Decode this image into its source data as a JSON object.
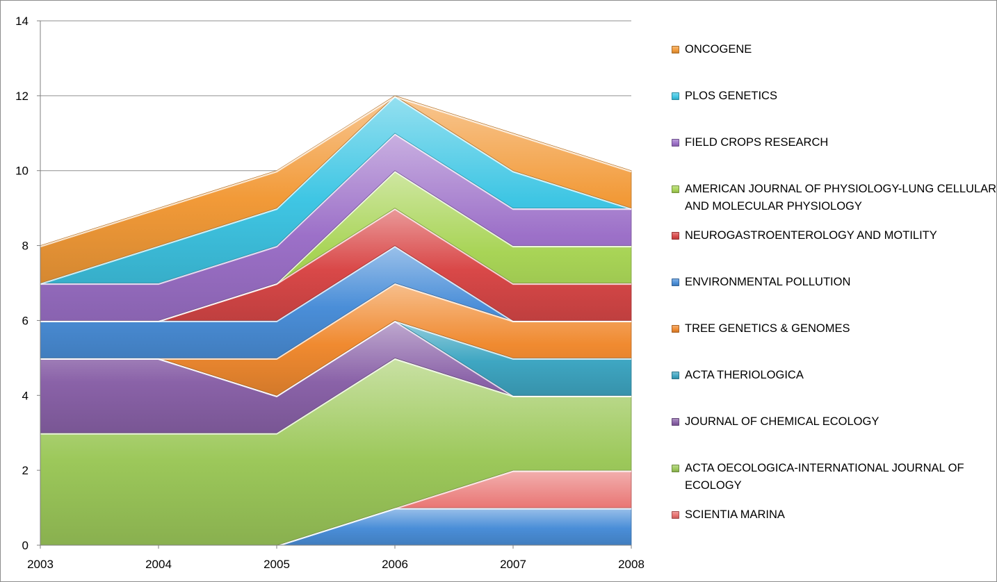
{
  "chart_data": {
    "type": "area",
    "stacked": true,
    "x": [
      "2003",
      "2004",
      "2005",
      "2006",
      "2007",
      "2008"
    ],
    "ylim": [
      0,
      14
    ],
    "yticks": [
      "0",
      "2",
      "4",
      "6",
      "8",
      "10",
      "12",
      "14"
    ],
    "grid": true,
    "legend_position": "right",
    "series": [
      {
        "name": "SCIENTIA MARINA",
        "values": [
          0,
          0,
          0,
          0,
          1,
          1
        ],
        "color": "#e8706e"
      },
      {
        "name": "ACTA OECOLOGICA-INTERNATIONAL JOURNAL OF ECOLOGY",
        "values": [
          3,
          3,
          3,
          4,
          2,
          2
        ],
        "color": "#9cc85a"
      },
      {
        "name": "JOURNAL OF CHEMICAL ECOLOGY",
        "values": [
          2,
          2,
          1,
          1,
          0,
          0
        ],
        "color": "#8a62a8"
      },
      {
        "name": "ACTA THERIOLOGICA",
        "values": [
          0,
          0,
          0,
          0,
          1,
          1
        ],
        "color": "#3ea6c2"
      },
      {
        "name": "TREE GENETICS & GENOMES",
        "values": [
          0,
          0,
          1,
          1,
          1,
          1
        ],
        "color": "#f08a30"
      },
      {
        "name": "ENVIRONMENTAL POLLUTION",
        "values": [
          1,
          1,
          1,
          1,
          0,
          0
        ],
        "color": "#4a8ed8"
      },
      {
        "name": "NEUROGASTROENTEROLOGY AND MOTILITY",
        "values": [
          0,
          0,
          1,
          1,
          1,
          1
        ],
        "color": "#d94848"
      },
      {
        "name": "AMERICAN JOURNAL OF PHYSIOLOGY-LUNG CELLULAR AND MOLECULAR PHYSIOLOGY",
        "values": [
          0,
          0,
          0,
          1,
          1,
          1
        ],
        "color": "#a8d456"
      },
      {
        "name": "FIELD CROPS RESEARCH",
        "values": [
          1,
          1,
          1,
          1,
          1,
          1
        ],
        "color": "#9c70c8"
      },
      {
        "name": "PLOS GENETICS",
        "values": [
          0,
          1,
          1,
          1,
          1,
          0
        ],
        "color": "#3fc6e4"
      },
      {
        "name": "ONCOGENE",
        "values": [
          1,
          1,
          1,
          0,
          1,
          1
        ],
        "color": "#f29a38"
      }
    ],
    "base_series": {
      "values": [
        0,
        0,
        0,
        1,
        1,
        1
      ],
      "color": "#4a8ed8"
    }
  }
}
